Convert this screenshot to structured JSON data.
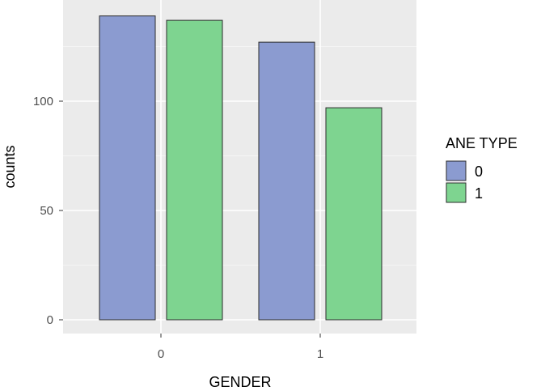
{
  "chart_data": {
    "type": "bar",
    "categories": [
      "0",
      "1"
    ],
    "series": [
      {
        "name": "0",
        "values": [
          139,
          127
        ],
        "color": "#8b9bd0"
      },
      {
        "name": "1",
        "values": [
          137,
          97
        ],
        "color": "#7ed490"
      }
    ],
    "xlabel": "GENDER",
    "ylabel": "counts",
    "yticks": [
      "0",
      "50",
      "100"
    ],
    "ylim": [
      0,
      145
    ],
    "grid": true,
    "legend": {
      "title": "ANE TYPE",
      "position": "right"
    },
    "panel_background": "#ebebeb"
  }
}
